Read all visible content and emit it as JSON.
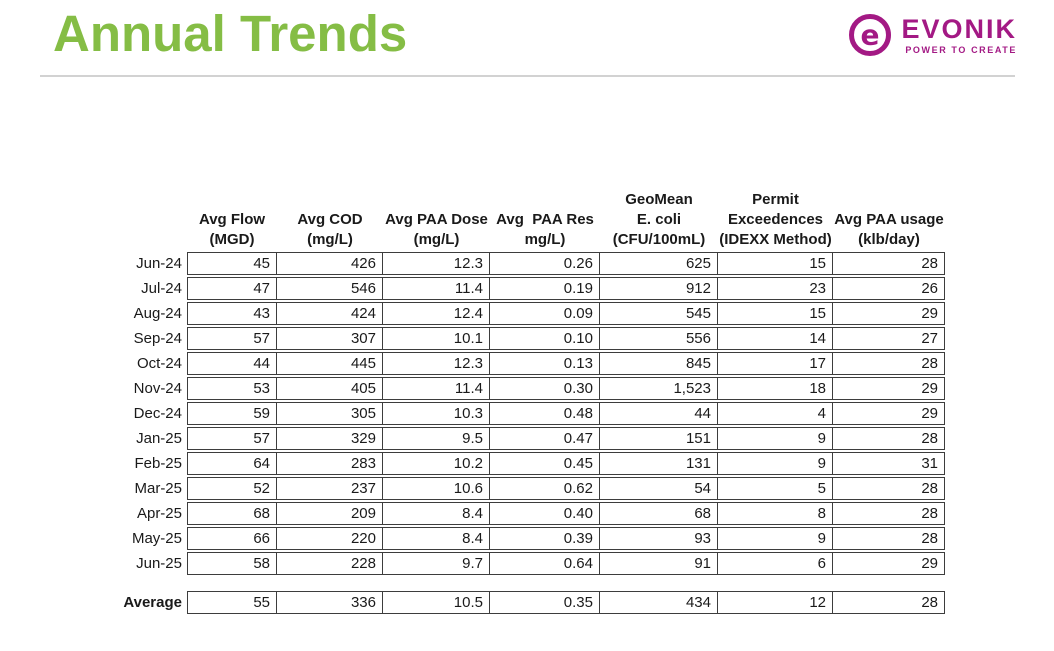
{
  "slide": {
    "title": "Annual Trends",
    "colors": {
      "title_green": "#85BD45",
      "logo_magenta": "#A31984",
      "table_border": "#3d3d3d",
      "divider_gray": "#d2d2d2"
    },
    "logo": {
      "brand": "EVONIK",
      "tagline": "POWER TO CREATE",
      "icon": "evonik-e-ring-icon"
    }
  },
  "table": {
    "columns": [
      "Avg Flow\n(MGD)",
      "Avg COD\n(mg/L)",
      "Avg PAA Dose\n(mg/L)",
      "Avg  PAA Res\nmg/L)",
      "GeoMean\nE. coli\n(CFU/100mL)",
      "Permit\nExceedences\n(IDEXX Method)",
      "Avg PAA usage\n(klb/day)"
    ],
    "rows": [
      {
        "label": "Jun-24",
        "values": [
          "45",
          "426",
          "12.3",
          "0.26",
          "625",
          "15",
          "28"
        ]
      },
      {
        "label": "Jul-24",
        "values": [
          "47",
          "546",
          "11.4",
          "0.19",
          "912",
          "23",
          "26"
        ]
      },
      {
        "label": "Aug-24",
        "values": [
          "43",
          "424",
          "12.4",
          "0.09",
          "545",
          "15",
          "29"
        ]
      },
      {
        "label": "Sep-24",
        "values": [
          "57",
          "307",
          "10.1",
          "0.10",
          "556",
          "14",
          "27"
        ]
      },
      {
        "label": "Oct-24",
        "values": [
          "44",
          "445",
          "12.3",
          "0.13",
          "845",
          "17",
          "28"
        ]
      },
      {
        "label": "Nov-24",
        "values": [
          "53",
          "405",
          "11.4",
          "0.30",
          "1,523",
          "18",
          "29"
        ]
      },
      {
        "label": "Dec-24",
        "values": [
          "59",
          "305",
          "10.3",
          "0.48",
          "44",
          "4",
          "29"
        ]
      },
      {
        "label": "Jan-25",
        "values": [
          "57",
          "329",
          "9.5",
          "0.47",
          "151",
          "9",
          "28"
        ]
      },
      {
        "label": "Feb-25",
        "values": [
          "64",
          "283",
          "10.2",
          "0.45",
          "131",
          "9",
          "31"
        ]
      },
      {
        "label": "Mar-25",
        "values": [
          "52",
          "237",
          "10.6",
          "0.62",
          "54",
          "5",
          "28"
        ]
      },
      {
        "label": "Apr-25",
        "values": [
          "68",
          "209",
          "8.4",
          "0.40",
          "68",
          "8",
          "28"
        ]
      },
      {
        "label": "May-25",
        "values": [
          "66",
          "220",
          "8.4",
          "0.39",
          "93",
          "9",
          "28"
        ]
      },
      {
        "label": "Jun-25",
        "values": [
          "58",
          "228",
          "9.7",
          "0.64",
          "91",
          "6",
          "29"
        ]
      }
    ],
    "summary": {
      "label": "Average",
      "values": [
        "55",
        "336",
        "10.5",
        "0.35",
        "434",
        "12",
        "28"
      ]
    }
  }
}
